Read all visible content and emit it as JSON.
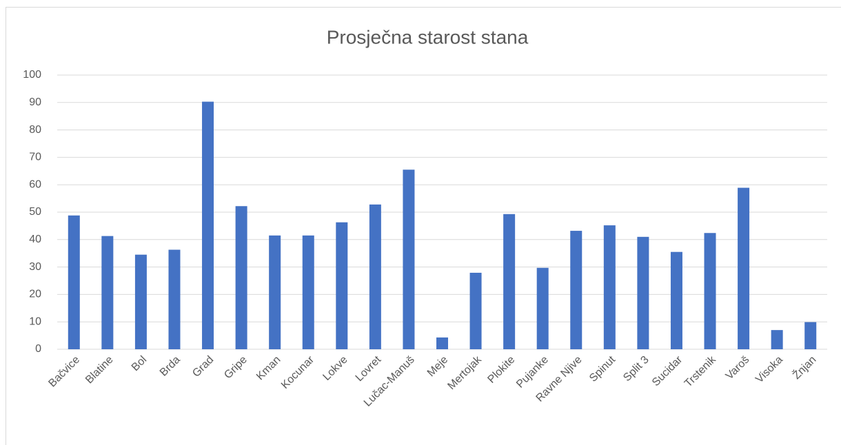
{
  "chart_data": {
    "type": "bar",
    "title": "Prosječna starost stana",
    "categories": [
      "Bačvice",
      "Blatine",
      "Bol",
      "Brda",
      "Grad",
      "Gripe",
      "Kman",
      "Kocunar",
      "Lokve",
      "Lovret",
      "Lučac-Manuš",
      "Meje",
      "Mertojak",
      "Plokite",
      "Pujanke",
      "Ravne Njive",
      "Spinut",
      "Split 3",
      "Sucidar",
      "Trstenik",
      "Varoš",
      "Visoka",
      "Žnjan"
    ],
    "values": [
      48.8,
      41.3,
      34.5,
      36.3,
      90.3,
      52.2,
      41.5,
      41.5,
      46.3,
      52.8,
      65.5,
      4.3,
      27.9,
      49.3,
      29.7,
      43.2,
      45.2,
      41,
      35.5,
      42.4,
      58.9,
      7,
      9.9
    ],
    "color": "#4472c4",
    "ylim": [
      0,
      100
    ],
    "yticks": [
      0,
      10,
      20,
      30,
      40,
      50,
      60,
      70,
      80,
      90,
      100
    ],
    "grid": true
  }
}
